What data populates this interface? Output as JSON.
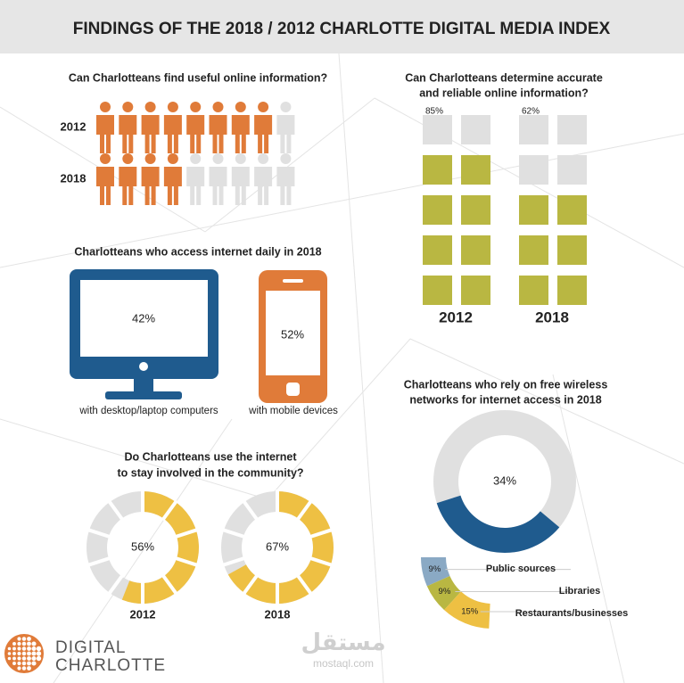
{
  "header": {
    "title": "FINDINGS OF THE 2018 / 2012 CHARLOTTE DIGITAL MEDIA INDEX"
  },
  "useful_info": {
    "title": "Can Charlotteans find useful online information?",
    "rows": [
      {
        "year": "2012",
        "filled": 8,
        "total": 9
      },
      {
        "year": "2018",
        "filled": 4,
        "total": 9
      }
    ]
  },
  "accurate_info": {
    "title_lines": [
      "Can Charlotteans determine accurate",
      "and reliable online information?"
    ],
    "columns": [
      {
        "year": "2012",
        "label": "85%",
        "filled": 8,
        "total": 10
      },
      {
        "year": "2018",
        "label": "62%",
        "filled": 6,
        "total": 10
      }
    ]
  },
  "daily_access": {
    "title": "Charlotteans who access internet daily in 2018",
    "devices": [
      {
        "label": "42%",
        "caption": "with desktop/laptop computers"
      },
      {
        "label": "52%",
        "caption": "with mobile devices"
      }
    ]
  },
  "community": {
    "title_lines": [
      "Do Charlotteans use the internet",
      "to stay involved in the community?"
    ],
    "donuts": [
      {
        "year": "2012",
        "value": 56,
        "label": "56%"
      },
      {
        "year": "2018",
        "value": 67,
        "label": "67%"
      }
    ]
  },
  "wireless": {
    "title_lines": [
      "Charlotteans who rely on free wireless",
      "networks for internet access in 2018"
    ],
    "total": {
      "value": 34,
      "label": "34%"
    },
    "breakdown": [
      {
        "name": "Public sources",
        "value": 9,
        "label": "9%",
        "color": "#8aa9c4"
      },
      {
        "name": "Libraries",
        "value": 9,
        "label": "9%",
        "color": "#b9b742"
      },
      {
        "name": "Restaurants/businesses",
        "value": 15,
        "label": "15%",
        "color": "#eec043"
      }
    ]
  },
  "logo": {
    "line1": "DIGITAL",
    "line2": "CHARLOTTE"
  },
  "watermark": {
    "arabic": "مستقل",
    "site": "mostaql.com"
  }
}
